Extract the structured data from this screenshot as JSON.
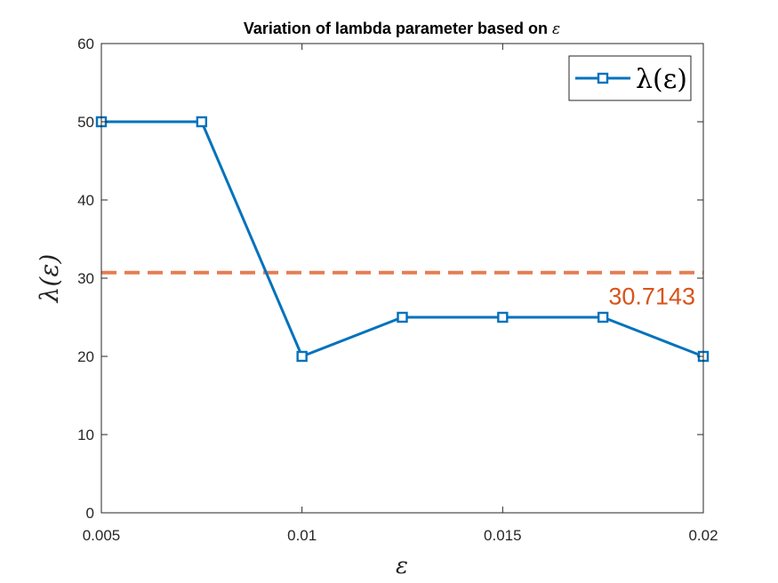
{
  "chart_data": {
    "type": "line",
    "title": "Variation of lambda parameter based on ε",
    "title_text": "Variation of lambda parameter based on ",
    "title_symbol": "ε",
    "xlabel": "ε",
    "ylabel": "λ(ε)",
    "xlim": [
      0.005,
      0.02
    ],
    "ylim": [
      0,
      60
    ],
    "xticks": [
      0.005,
      0.01,
      0.015,
      0.02
    ],
    "xtick_labels": [
      "0.005",
      "0.01",
      "0.015",
      "0.02"
    ],
    "yticks": [
      0,
      10,
      20,
      30,
      40,
      50,
      60
    ],
    "ytick_labels": [
      "0",
      "10",
      "20",
      "30",
      "40",
      "50",
      "60"
    ],
    "grid": false,
    "legend_position": "top-right",
    "series": [
      {
        "name": "λ(ε)",
        "color": "#0072BD",
        "marker": "square",
        "x": [
          0.005,
          0.0075,
          0.01,
          0.0125,
          0.015,
          0.0175,
          0.02
        ],
        "y": [
          50,
          50,
          20,
          25,
          25,
          25,
          20
        ]
      }
    ],
    "reference_line": {
      "value": 30.7143,
      "label": "30.7143",
      "style": "dashed",
      "color": "#D95319"
    }
  }
}
